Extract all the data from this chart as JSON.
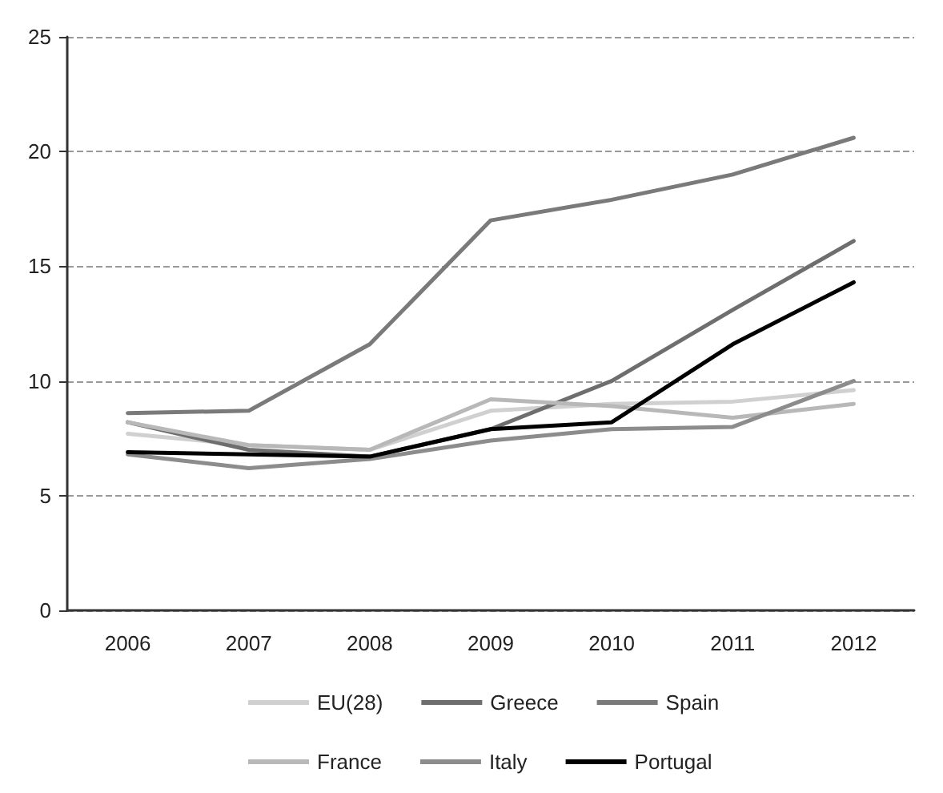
{
  "chart_data": {
    "type": "line",
    "categories": [
      "2006",
      "2007",
      "2008",
      "2009",
      "2010",
      "2011",
      "2012"
    ],
    "series": [
      {
        "name": "EU(28)",
        "color": "#d0d0d0",
        "values": [
          7.7,
          7.2,
          7.0,
          8.7,
          9.0,
          9.1,
          9.6
        ]
      },
      {
        "name": "Greece",
        "color": "#6e6e6e",
        "values": [
          8.2,
          7.0,
          6.7,
          7.9,
          10.0,
          13.1,
          16.1
        ]
      },
      {
        "name": "Spain",
        "color": "#7a7a7a",
        "values": [
          8.6,
          8.7,
          11.6,
          17.0,
          17.9,
          19.0,
          20.6
        ]
      },
      {
        "name": "France",
        "color": "#b8b8b8",
        "values": [
          8.2,
          7.2,
          7.0,
          9.2,
          8.9,
          8.4,
          9.0
        ]
      },
      {
        "name": "Italy",
        "color": "#8c8c8c",
        "values": [
          6.8,
          6.2,
          6.6,
          7.4,
          7.9,
          8.0,
          10.0
        ]
      },
      {
        "name": "Portugal",
        "color": "#000000",
        "values": [
          6.9,
          6.8,
          6.7,
          7.9,
          8.2,
          11.6,
          14.3
        ]
      }
    ],
    "ylim": [
      0,
      25
    ],
    "yticks": [
      0,
      5,
      10,
      15,
      20,
      25
    ],
    "grid": "y",
    "legend": "bottom",
    "marker": "none",
    "line_style": "solid"
  }
}
